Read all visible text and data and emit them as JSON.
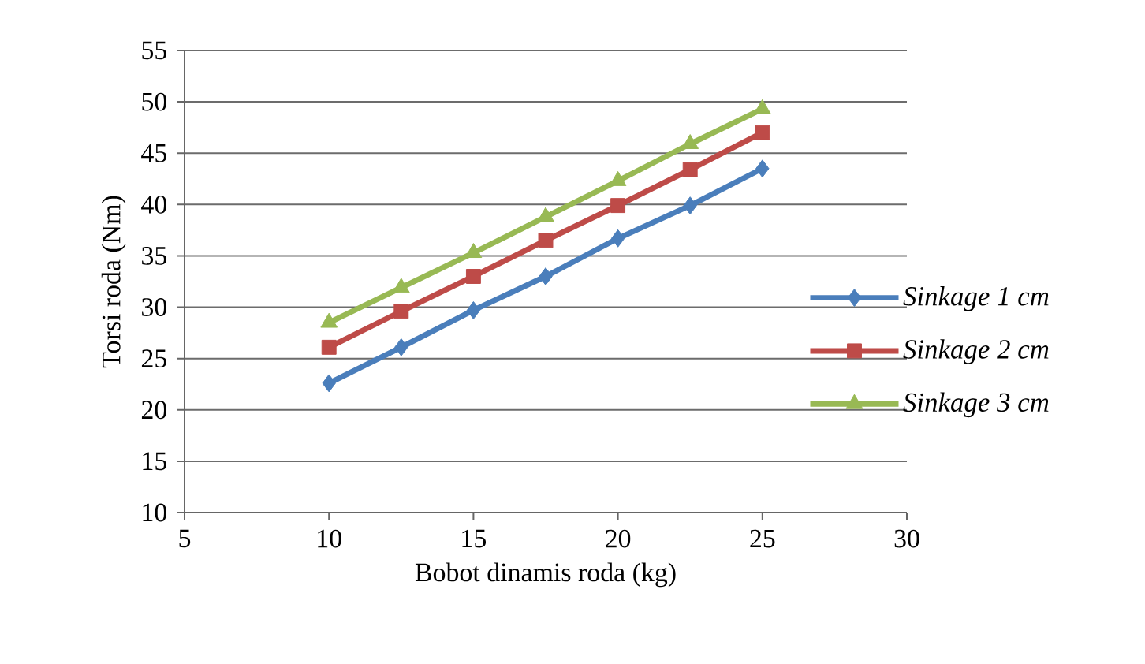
{
  "chart_data": {
    "type": "line",
    "xlabel": "Bobot dinamis roda (kg)",
    "ylabel": "Torsi roda (Nm)",
    "x": [
      10,
      12.5,
      15,
      17.5,
      20,
      22.5,
      25
    ],
    "series": [
      {
        "name": "Sinkage 1 cm",
        "color": "#4a7ebb",
        "marker": "diamond",
        "values": [
          22.6,
          26.1,
          29.7,
          33.0,
          36.7,
          39.9,
          43.5
        ]
      },
      {
        "name": "Sinkage 2 cm",
        "color": "#be4b48",
        "marker": "square",
        "values": [
          26.1,
          29.6,
          33.0,
          36.5,
          39.9,
          43.4,
          47.0
        ]
      },
      {
        "name": "Sinkage 3 cm",
        "color": "#98b954",
        "marker": "triangle",
        "values": [
          28.5,
          31.9,
          35.3,
          38.8,
          42.3,
          45.9,
          49.3
        ]
      }
    ],
    "xlim": [
      5,
      30
    ],
    "ylim": [
      10,
      55
    ],
    "xticks": [
      5,
      10,
      15,
      20,
      25,
      30
    ],
    "yticks": [
      10,
      15,
      20,
      25,
      30,
      35,
      40,
      45,
      50,
      55
    ],
    "grid": "y",
    "legend": "right"
  }
}
